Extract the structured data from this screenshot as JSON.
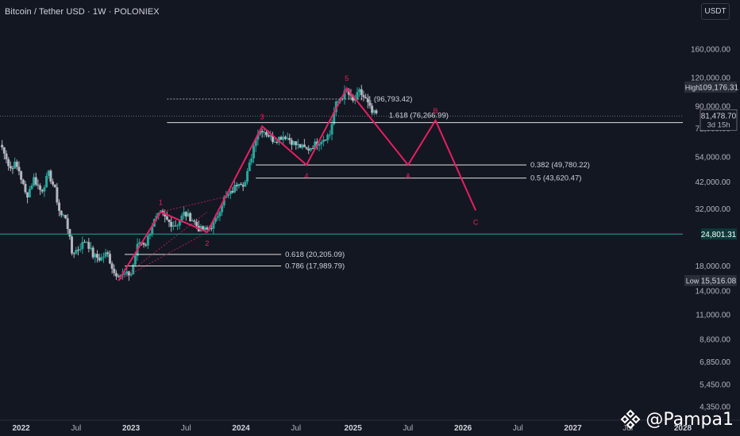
{
  "header": {
    "symbol": "Bitcoin / Tether USD",
    "interval": "1W",
    "exchange": "POLONIEX",
    "currency_button": "USDT"
  },
  "watermark": {
    "text": "@Pampa1"
  },
  "colors": {
    "background": "#131722",
    "candle_up": "#26a69a",
    "candle_down": "#b2b5be",
    "wave": "#e91e63",
    "fib_line": "#ffffff",
    "current_price_line": "#787b86",
    "support_line": "#26a69a",
    "axis_text": "#b2b5be",
    "axis_label_bg": "#2a2e39",
    "support_label_bg": "#0d3a3a"
  },
  "chart_data": {
    "type": "candlestick",
    "y_scale": "log",
    "ylim": [
      3800,
      210000
    ],
    "xlim": [
      "2021-10-25",
      "2028-01-03"
    ],
    "x_ticks": [
      {
        "date": "2022-01-03",
        "label": "2022"
      },
      {
        "date": "2022-07-04",
        "label": "Jul"
      },
      {
        "date": "2023-01-02",
        "label": "2023"
      },
      {
        "date": "2023-07-03",
        "label": "Jul"
      },
      {
        "date": "2024-01-01",
        "label": "2024"
      },
      {
        "date": "2024-07-01",
        "label": "Jul"
      },
      {
        "date": "2025-01-06",
        "label": "2025"
      },
      {
        "date": "2025-07-07",
        "label": "Jul"
      },
      {
        "date": "2026-01-05",
        "label": "2026"
      },
      {
        "date": "2026-07-06",
        "label": "Jul"
      },
      {
        "date": "2027-01-04",
        "label": "2027"
      },
      {
        "date": "2027-07-05",
        "label": "Jul"
      },
      {
        "date": "2028-01-03",
        "label": "2028"
      }
    ],
    "y_ticks": [
      {
        "value": 160000,
        "label": "160,000.00"
      },
      {
        "value": 120000,
        "label": "120,000.00"
      },
      {
        "value": 90000,
        "label": "90,000.00"
      },
      {
        "value": 72000,
        "label": "72,000.00"
      },
      {
        "value": 54000,
        "label": "54,000.00"
      },
      {
        "value": 42000,
        "label": "42,000.00"
      },
      {
        "value": 32000,
        "label": "32,000.00"
      },
      {
        "value": 18000,
        "label": "18,000.00"
      },
      {
        "value": 14000,
        "label": "14,000.00"
      },
      {
        "value": 11000,
        "label": "11,000.00"
      },
      {
        "value": 8600,
        "label": "8,600.00"
      },
      {
        "value": 6850,
        "label": "6,850.00"
      },
      {
        "value": 5450,
        "label": "5,450.00"
      },
      {
        "value": 4350,
        "label": "4,350.00"
      }
    ],
    "price_labels": [
      {
        "kind": "high",
        "tag": "High",
        "value": 109176.31,
        "label": "109,176.31"
      },
      {
        "kind": "current",
        "value": 81478.7,
        "label": "81,478.70",
        "countdown": "3d 15h"
      },
      {
        "kind": "support",
        "value": 24801.31,
        "label": "24,801.31"
      },
      {
        "kind": "low",
        "tag": "Low",
        "value": 15516.08,
        "label": "15,516.08"
      }
    ],
    "fib_levels": [
      {
        "ratio": "1",
        "value": 96793.42,
        "label": "1 (96,793.42)",
        "from": "2023-05-01",
        "to": "2025-02-10",
        "style": "dotted"
      },
      {
        "ratio": "1.618",
        "value": 76266.99,
        "label": "1.618 (76,266.99)",
        "from": "2023-05-01",
        "to": "2028-01-03",
        "style": "solid"
      },
      {
        "ratio": "0.382",
        "value": 49780.22,
        "label": "0.382 (49,780.22)",
        "from": "2024-02-19",
        "to": "2026-08-03",
        "style": "solid"
      },
      {
        "ratio": "0.5",
        "value": 43620.47,
        "label": "0.5 (43,620.47)",
        "from": "2024-02-19",
        "to": "2026-08-03",
        "style": "solid"
      },
      {
        "ratio": "0.618",
        "value": 20205.09,
        "label": "0.618 (20,205.09)",
        "from": "2022-12-12",
        "to": "2024-05-13",
        "style": "solid"
      },
      {
        "ratio": "0.786",
        "value": 17989.79,
        "label": "0.786 (17,989.79)",
        "from": "2022-12-12",
        "to": "2024-05-13",
        "style": "solid"
      }
    ],
    "wave_points": [
      {
        "date": "2022-11-21",
        "value": 15500,
        "label": ""
      },
      {
        "date": "2023-04-10",
        "value": 31000,
        "label": "1"
      },
      {
        "date": "2023-09-11",
        "value": 25300,
        "label": "2"
      },
      {
        "date": "2024-03-11",
        "value": 73500,
        "label": "3"
      },
      {
        "date": "2024-08-05",
        "value": 49800,
        "label": "4"
      },
      {
        "date": "2024-12-16",
        "value": 108000,
        "label": "5"
      },
      {
        "date": "2025-07-07",
        "value": 49800,
        "label": "A"
      },
      {
        "date": "2025-10-06",
        "value": 78000,
        "label": "B"
      },
      {
        "date": "2026-02-16",
        "value": 31500,
        "label": "C"
      }
    ],
    "wave_guides": [
      {
        "from": {
          "date": "2022-11-21",
          "value": 15500
        },
        "to": {
          "date": "2023-09-11",
          "value": 31000
        }
      },
      {
        "from": {
          "date": "2023-04-10",
          "value": 31000
        },
        "to": {
          "date": "2023-11-06",
          "value": 36000
        }
      },
      {
        "from": {
          "date": "2022-11-21",
          "value": 15500
        },
        "to": {
          "date": "2023-09-11",
          "value": 25300
        }
      }
    ],
    "candle_segments": [
      {
        "from": "2021-10-25",
        "to": "2021-12-27",
        "points": [
          61000,
          57000,
          47500,
          50500,
          47000
        ]
      },
      {
        "from": "2021-12-27",
        "to": "2022-04-04",
        "points": [
          47000,
          36000,
          43500,
          38000,
          45500
        ]
      },
      {
        "from": "2022-04-04",
        "to": "2022-06-20",
        "points": [
          45500,
          39500,
          30000,
          29500,
          20500
        ]
      },
      {
        "from": "2022-06-20",
        "to": "2022-11-07",
        "points": [
          20500,
          21500,
          23500,
          20000,
          19300,
          20500,
          16800
        ]
      },
      {
        "from": "2022-11-07",
        "to": "2023-01-02",
        "points": [
          16800,
          16400,
          16600
        ]
      },
      {
        "from": "2023-01-02",
        "to": "2023-04-10",
        "points": [
          16600,
          23000,
          22500,
          28000,
          30500
        ]
      },
      {
        "from": "2023-04-10",
        "to": "2023-09-11",
        "points": [
          30500,
          28000,
          27000,
          30500,
          29000,
          26000,
          25800
        ]
      },
      {
        "from": "2023-09-11",
        "to": "2023-12-25",
        "points": [
          25800,
          28000,
          35000,
          37500,
          42500
        ]
      },
      {
        "from": "2023-12-25",
        "to": "2024-03-11",
        "points": [
          42500,
          41000,
          52000,
          68000,
          71500
        ]
      },
      {
        "from": "2024-03-11",
        "to": "2024-10-21",
        "points": [
          71500,
          64000,
          67000,
          61000,
          58000,
          63000,
          68000
        ]
      },
      {
        "from": "2024-10-21",
        "to": "2024-12-16",
        "points": [
          68000,
          91000,
          98000,
          105000
        ]
      },
      {
        "from": "2024-12-16",
        "to": "2025-03-31",
        "points": [
          105000,
          94000,
          104000,
          96000,
          84000,
          82500
        ]
      }
    ]
  }
}
